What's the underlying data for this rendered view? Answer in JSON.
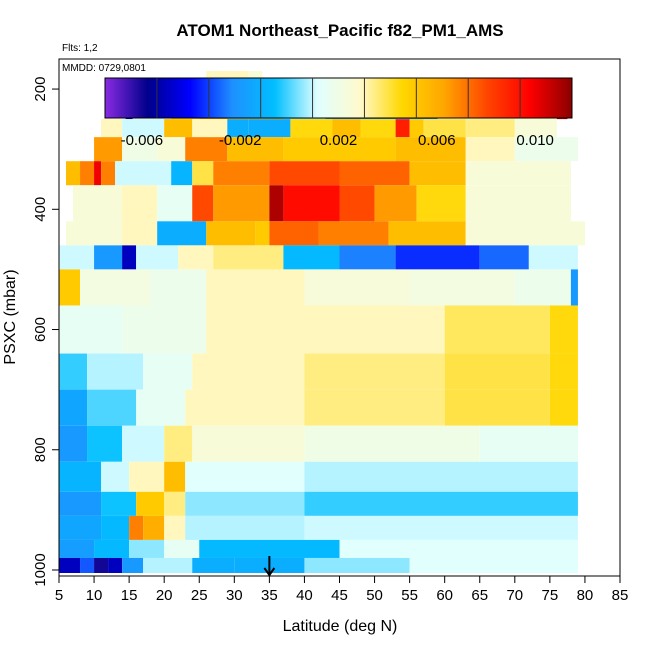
{
  "chart_data": {
    "type": "heatmap",
    "title": "ATOM1 Northeast_Pacific f82_PM1_AMS",
    "flights_note": "Flts: 1,2",
    "date_note": "MMDD: 0729,0801",
    "xlabel": "Latitude (deg N)",
    "ylabel": "PSXC (mbar)",
    "xlim": [
      5,
      85
    ],
    "ylim": [
      1010,
      150
    ],
    "y_reversed": true,
    "x_ticks": [
      5,
      10,
      15,
      20,
      25,
      30,
      35,
      40,
      45,
      50,
      55,
      60,
      65,
      70,
      75,
      80,
      85
    ],
    "y_ticks": [
      200,
      400,
      600,
      800,
      1000
    ],
    "colorbar": {
      "min": -0.0075,
      "max": 0.0115,
      "tick_values": [
        -0.006,
        -0.002,
        0.002,
        0.006,
        0.01
      ],
      "tick_labels": [
        "-0.006",
        "-0.002",
        "0.002",
        "0.006",
        "0.010"
      ],
      "colors": [
        "#8a2be2",
        "#00008b",
        "#0000ff",
        "#1e90ff",
        "#00bfff",
        "#e0ffff",
        "#fffacd",
        "#ffd700",
        "#ffa500",
        "#ff4500",
        "#ff0000",
        "#8b0000"
      ]
    },
    "marker_latitude": 35,
    "grid": false,
    "layers": [
      {
        "p_top": 170,
        "p_bot": 195,
        "segments": [
          [
            26,
            32,
            0.003
          ],
          [
            32,
            34,
            0.0025
          ]
        ]
      },
      {
        "p_top": 195,
        "p_bot": 215,
        "segments": [
          [
            25.5,
            27,
            0.005
          ],
          [
            27,
            34,
            0.0038
          ]
        ]
      },
      {
        "p_top": 215,
        "p_bot": 250,
        "segments": [
          [
            14.5,
            15.5,
            -0.005
          ],
          [
            15.5,
            18,
            0.0018
          ],
          [
            18,
            21,
            0.0015
          ],
          [
            21,
            25,
            0.0045
          ],
          [
            25,
            37,
            0.006
          ],
          [
            37,
            43,
            0.0002
          ],
          [
            43,
            59,
            -0.0022
          ],
          [
            59,
            64,
            0.0025
          ],
          [
            64,
            76,
            0.003
          ],
          [
            76,
            77.5,
            0.0105
          ]
        ]
      },
      {
        "p_top": 250,
        "p_bot": 280,
        "segments": [
          [
            11,
            14,
            0.003
          ],
          [
            14,
            20,
            0.001
          ],
          [
            20,
            24,
            0.0055
          ],
          [
            24,
            29,
            0.003
          ],
          [
            29,
            32,
            -0.0012
          ],
          [
            32,
            38,
            -0.0012
          ],
          [
            38,
            44,
            0.0045
          ],
          [
            44,
            48,
            0.0055
          ],
          [
            48,
            53,
            0.0045
          ],
          [
            53,
            55,
            0.009
          ],
          [
            55,
            57,
            0.005
          ],
          [
            57,
            63,
            0.004
          ],
          [
            63,
            70,
            0.0035
          ],
          [
            70,
            76,
            0.0025
          ]
        ]
      },
      {
        "p_top": 280,
        "p_bot": 320,
        "segments": [
          [
            10,
            14,
            0.0065
          ],
          [
            14,
            19,
            0.002
          ],
          [
            19,
            23,
            0.0025
          ],
          [
            23,
            29,
            0.007
          ],
          [
            29,
            37,
            0.0055
          ],
          [
            37,
            46,
            0.005
          ],
          [
            46,
            53,
            0.005
          ],
          [
            53,
            63,
            0.0055
          ],
          [
            63,
            70,
            0.003
          ],
          [
            70,
            79,
            0.0018
          ]
        ]
      },
      {
        "p_top": 320,
        "p_bot": 360,
        "segments": [
          [
            6,
            8,
            0.0055
          ],
          [
            8,
            10,
            0.007
          ],
          [
            10,
            11,
            0.01
          ],
          [
            11,
            13,
            0.007
          ],
          [
            13,
            21,
            0.001
          ],
          [
            21,
            24,
            -0.001
          ],
          [
            24,
            27,
            0.004
          ],
          [
            27,
            35,
            0.007
          ],
          [
            35,
            45,
            0.008
          ],
          [
            45,
            55,
            0.0075
          ],
          [
            55,
            63,
            0.0055
          ],
          [
            63,
            78,
            0.0025
          ]
        ]
      },
      {
        "p_top": 360,
        "p_bot": 420,
        "segments": [
          [
            7,
            14,
            0.0025
          ],
          [
            14,
            19,
            0.003
          ],
          [
            19,
            24,
            0.0015
          ],
          [
            24,
            27,
            0.008
          ],
          [
            27,
            35,
            0.0065
          ],
          [
            35,
            37,
            0.011
          ],
          [
            37,
            45,
            0.0095
          ],
          [
            45,
            50,
            0.008
          ],
          [
            50,
            56,
            0.0065
          ],
          [
            56,
            63,
            0.0045
          ],
          [
            63,
            78,
            0.0025
          ]
        ]
      },
      {
        "p_top": 420,
        "p_bot": 460,
        "segments": [
          [
            6,
            14,
            0.0025
          ],
          [
            14,
            19,
            0.003
          ],
          [
            19,
            26,
            -0.0012
          ],
          [
            26,
            33,
            0.0055
          ],
          [
            33,
            35,
            0.005
          ],
          [
            35,
            42,
            0.0075
          ],
          [
            42,
            52,
            0.007
          ],
          [
            52,
            63,
            0.0055
          ],
          [
            63,
            80,
            0.0025
          ]
        ]
      },
      {
        "p_top": 460,
        "p_bot": 500,
        "segments": [
          [
            5,
            10,
            0.001
          ],
          [
            10,
            14,
            -0.002
          ],
          [
            14,
            16,
            -0.005
          ],
          [
            16,
            22,
            0.001
          ],
          [
            22,
            27,
            0.003
          ],
          [
            27,
            37,
            0.0035
          ],
          [
            37,
            45,
            -0.0008
          ],
          [
            45,
            53,
            -0.0025
          ],
          [
            53,
            65,
            -0.0035
          ],
          [
            65,
            72,
            -0.0028
          ],
          [
            72,
            79,
            0.001
          ]
        ]
      },
      {
        "p_top": 500,
        "p_bot": 560,
        "segments": [
          [
            5,
            8,
            0.005
          ],
          [
            8,
            18,
            0.0022
          ],
          [
            18,
            26,
            0.0018
          ],
          [
            26,
            40,
            0.003
          ],
          [
            40,
            55,
            0.0024
          ],
          [
            55,
            70,
            0.0022
          ],
          [
            70,
            78,
            0.0018
          ],
          [
            78,
            79,
            -0.002
          ]
        ]
      },
      {
        "p_top": 560,
        "p_bot": 640,
        "segments": [
          [
            5,
            14,
            0.0015
          ],
          [
            14,
            26,
            0.0018
          ],
          [
            26,
            45,
            0.003
          ],
          [
            45,
            60,
            0.003
          ],
          [
            60,
            75,
            0.0038
          ],
          [
            75,
            79,
            0.0045
          ]
        ]
      },
      {
        "p_top": 640,
        "p_bot": 700,
        "segments": [
          [
            5,
            9,
            -0.0002
          ],
          [
            9,
            17,
            0.0008
          ],
          [
            17,
            24,
            0.0015
          ],
          [
            24,
            40,
            0.003
          ],
          [
            40,
            60,
            0.0035
          ],
          [
            60,
            75,
            0.004
          ],
          [
            75,
            79,
            0.0045
          ]
        ]
      },
      {
        "p_top": 700,
        "p_bot": 760,
        "segments": [
          [
            5,
            9,
            -0.0015
          ],
          [
            9,
            16,
            0.0
          ],
          [
            16,
            23,
            0.0015
          ],
          [
            23,
            40,
            0.003
          ],
          [
            40,
            60,
            0.0035
          ],
          [
            60,
            75,
            0.004
          ],
          [
            75,
            79,
            0.0045
          ]
        ]
      },
      {
        "p_top": 760,
        "p_bot": 820,
        "segments": [
          [
            5,
            9,
            -0.002
          ],
          [
            9,
            14,
            -0.0005
          ],
          [
            14,
            20,
            0.001
          ],
          [
            20,
            24,
            0.0035
          ],
          [
            24,
            40,
            0.0025
          ],
          [
            40,
            65,
            0.002
          ],
          [
            65,
            79,
            0.0015
          ]
        ]
      },
      {
        "p_top": 820,
        "p_bot": 870,
        "segments": [
          [
            5,
            11,
            -0.001
          ],
          [
            11,
            15,
            0.001
          ],
          [
            15,
            20,
            0.003
          ],
          [
            20,
            23,
            0.0055
          ],
          [
            23,
            40,
            0.0012
          ],
          [
            40,
            79,
            0.0008
          ]
        ]
      },
      {
        "p_top": 870,
        "p_bot": 910,
        "segments": [
          [
            5,
            11,
            -0.002
          ],
          [
            11,
            16,
            -0.0005
          ],
          [
            16,
            20,
            0.005
          ],
          [
            20,
            23,
            0.0035
          ],
          [
            23,
            40,
            0.0005
          ],
          [
            40,
            79,
            -0.0002
          ]
        ]
      },
      {
        "p_top": 910,
        "p_bot": 950,
        "segments": [
          [
            5,
            11,
            -0.0015
          ],
          [
            11,
            15,
            -0.0008
          ],
          [
            15,
            17,
            0.007
          ],
          [
            17,
            20,
            0.006
          ],
          [
            20,
            23,
            0.003
          ],
          [
            23,
            40,
            0.0008
          ],
          [
            40,
            79,
            0.001
          ]
        ]
      },
      {
        "p_top": 950,
        "p_bot": 980,
        "segments": [
          [
            5,
            10,
            -0.0018
          ],
          [
            10,
            15,
            -0.0008
          ],
          [
            15,
            20,
            0.0005
          ],
          [
            20,
            25,
            0.0015
          ],
          [
            25,
            45,
            -0.0008
          ],
          [
            45,
            79,
            0.0012
          ]
        ]
      },
      {
        "p_top": 980,
        "p_bot": 1005,
        "segments": [
          [
            5,
            8,
            -0.005
          ],
          [
            8,
            10,
            -0.003
          ],
          [
            10,
            12,
            -0.006
          ],
          [
            12,
            14,
            -0.005
          ],
          [
            14,
            17,
            -0.002
          ],
          [
            17,
            24,
            0.0008
          ],
          [
            24,
            30,
            -0.0012
          ],
          [
            30,
            40,
            -0.0012
          ],
          [
            40,
            55,
            0.0005
          ],
          [
            55,
            79,
            0.0012
          ]
        ]
      }
    ]
  }
}
